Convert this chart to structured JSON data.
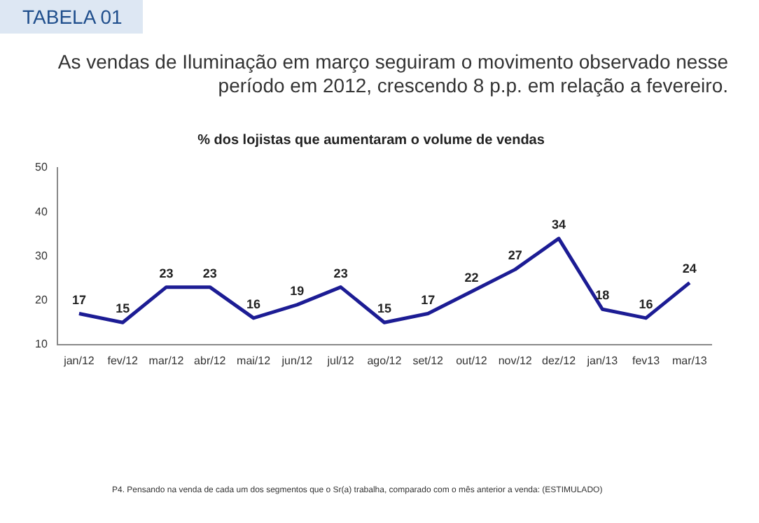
{
  "chart_data": {
    "type": "line",
    "title": "% dos lojistas que aumentaram o volume de vendas",
    "subtitle": "As vendas de Iluminação em março seguiram o movimento observado nesse período em 2012, crescendo 8 p.p. em relação a fevereiro.",
    "annotations": [
      "TABELA 01",
      "P4. Pensando na venda de cada um dos segmentos que o Sr(a) trabalha, comparado com o mês anterior a venda: (ESTIMULADO)"
    ],
    "categories": [
      "jan/12",
      "fev/12",
      "mar/12",
      "abr/12",
      "mai/12",
      "jun/12",
      "jul/12",
      "ago/12",
      "set/12",
      "out/12",
      "nov/12",
      "dez/12",
      "jan/13",
      "fev13",
      "mar/13"
    ],
    "series": [
      {
        "color": "#1c1c94",
        "values": [
          17,
          15,
          23,
          23,
          16,
          19,
          23,
          15,
          17,
          22,
          27,
          34,
          18,
          16,
          24
        ]
      }
    ],
    "ylim": [
      10,
      50
    ],
    "yticks": [
      10,
      20,
      30,
      40,
      50
    ],
    "grid": false,
    "legend": false,
    "marker": "none",
    "data_labels": true
  }
}
